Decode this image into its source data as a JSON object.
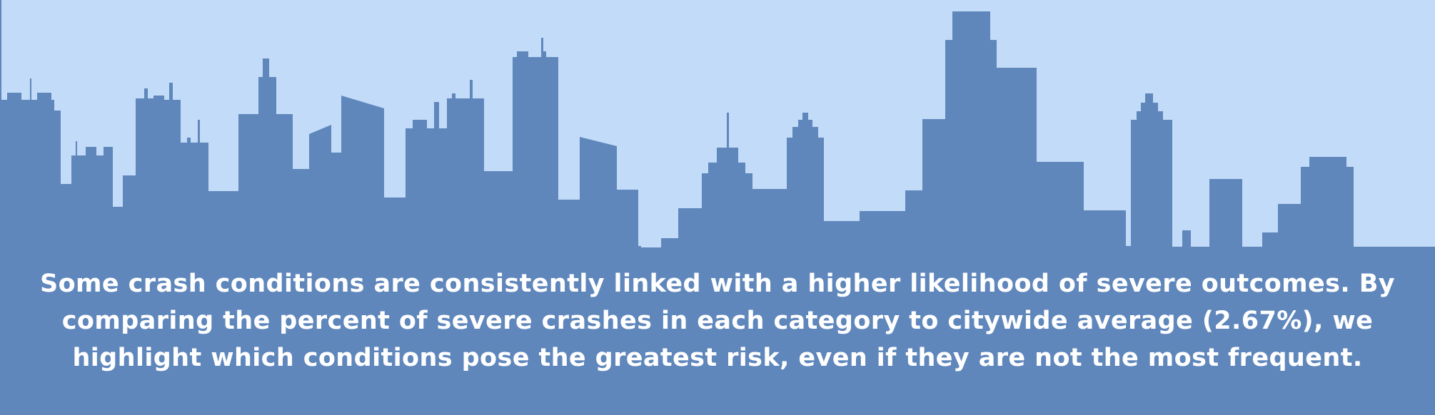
{
  "colors": {
    "sky": "#c2dbf8",
    "skyline": "#5f87bc",
    "text": "#ffffff"
  },
  "caption": {
    "text": "Some crash conditions are consistently linked with a higher likelihood of severe outcomes. By comparing the percent of severe crashes in each category to citywide average (2.67%), we highlight which conditions pose the greatest risk, even if they are not the most frequent."
  }
}
